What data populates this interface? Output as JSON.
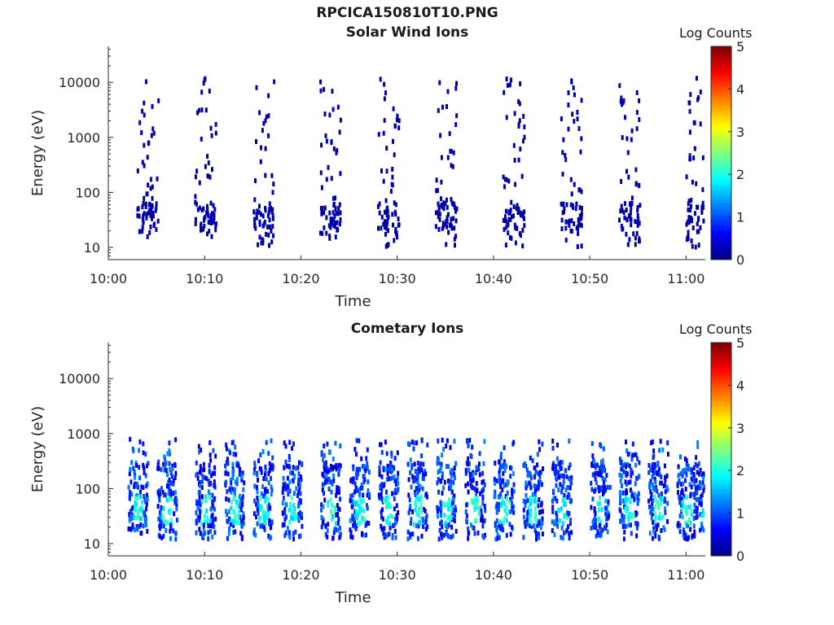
{
  "figure": {
    "title": "RPCICA150810T10.PNG"
  },
  "colorbar": {
    "label": "Log Counts",
    "ticks": [
      "0",
      "1",
      "2",
      "3",
      "4",
      "5"
    ],
    "range": [
      0,
      5
    ],
    "colormap": "jet"
  },
  "chart_data": [
    {
      "type": "heatmap",
      "title": "Solar Wind Ions",
      "xlabel": "Time",
      "ylabel": "Energy (eV)",
      "y_scale": "log",
      "ylim": [
        6,
        45000
      ],
      "xlim": [
        "10:00",
        "11:02"
      ],
      "x_ticks": [
        "10:00",
        "10:10",
        "10:20",
        "10:30",
        "10:40",
        "10:50",
        "11:00"
      ],
      "y_ticks": [
        "10",
        "100",
        "1000",
        "10000"
      ],
      "colorbar_label": "Log Counts",
      "burst_times": [
        "10:04",
        "10:10",
        "10:16",
        "10:23",
        "10:29",
        "10:35",
        "10:42",
        "10:48",
        "10:54",
        "11:01"
      ],
      "typical_log_counts": 0.2,
      "peak_energy_ev": [
        20,
        60
      ]
    },
    {
      "type": "heatmap",
      "title": "Cometary Ions",
      "xlabel": "Time",
      "ylabel": "Energy (eV)",
      "y_scale": "log",
      "ylim": [
        6,
        45000
      ],
      "xlim": [
        "10:00",
        "11:02"
      ],
      "x_ticks": [
        "10:00",
        "10:10",
        "10:20",
        "10:30",
        "10:40",
        "10:50",
        "11:00"
      ],
      "y_ticks": [
        "10",
        "100",
        "1000",
        "10000"
      ],
      "colorbar_label": "Log Counts",
      "burst_times": [
        "10:03",
        "10:06",
        "10:10",
        "10:13",
        "10:16",
        "10:19",
        "10:23",
        "10:26",
        "10:29",
        "10:32",
        "10:35",
        "10:38",
        "10:41",
        "10:44",
        "10:47",
        "10:51",
        "10:54",
        "10:57",
        "11:00",
        "11:02"
      ],
      "typical_log_counts": 1.2,
      "max_log_counts": 2.3,
      "peak_energy_ev": [
        25,
        60
      ]
    }
  ]
}
